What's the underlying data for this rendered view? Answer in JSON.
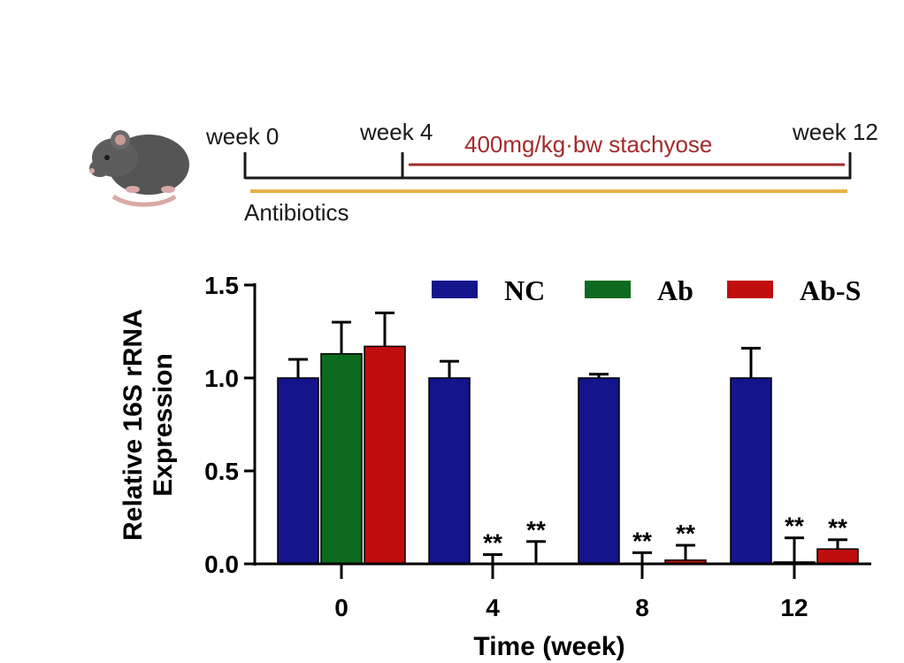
{
  "timeline": {
    "labels": [
      "week 0",
      "week 4",
      "week 12"
    ],
    "treatment": "400mg/kg·bw stachyose",
    "pretreatment": "Antibiotics",
    "colors": {
      "axis": "#1a1a1a",
      "treatment": "#a32b2b",
      "antibiotics": "#e8b04a"
    },
    "icon": "mouse-icon"
  },
  "chart_data": {
    "type": "bar",
    "categories": [
      "0",
      "4",
      "8",
      "12"
    ],
    "series": [
      {
        "name": "NC",
        "color": "#14148c",
        "values": [
          1.0,
          1.0,
          1.0,
          1.0
        ],
        "errors": [
          0.1,
          0.09,
          0.02,
          0.16
        ],
        "marks": [
          "",
          "",
          "",
          ""
        ]
      },
      {
        "name": "Ab",
        "color": "#0e6a1e",
        "values": [
          1.13,
          0.0,
          0.0,
          0.01
        ],
        "errors": [
          0.17,
          0.05,
          0.06,
          0.13
        ],
        "marks": [
          "",
          "**",
          "**",
          "**"
        ]
      },
      {
        "name": "Ab-S",
        "color": "#c00d0d",
        "values": [
          1.17,
          0.0,
          0.02,
          0.08
        ],
        "errors": [
          0.18,
          0.12,
          0.08,
          0.05
        ],
        "marks": [
          "",
          "**",
          "**",
          "**"
        ]
      }
    ],
    "xlabel": "Time (week)",
    "ylabel": [
      "Relative 16S rRNA",
      "Expression"
    ],
    "ylim": [
      0,
      1.5
    ],
    "yticks": [
      "0.0",
      "0.5",
      "1.0",
      "1.5"
    ],
    "ytick_values": [
      0,
      0.5,
      1.0,
      1.5
    ],
    "grid": false,
    "legend": "top-right"
  }
}
